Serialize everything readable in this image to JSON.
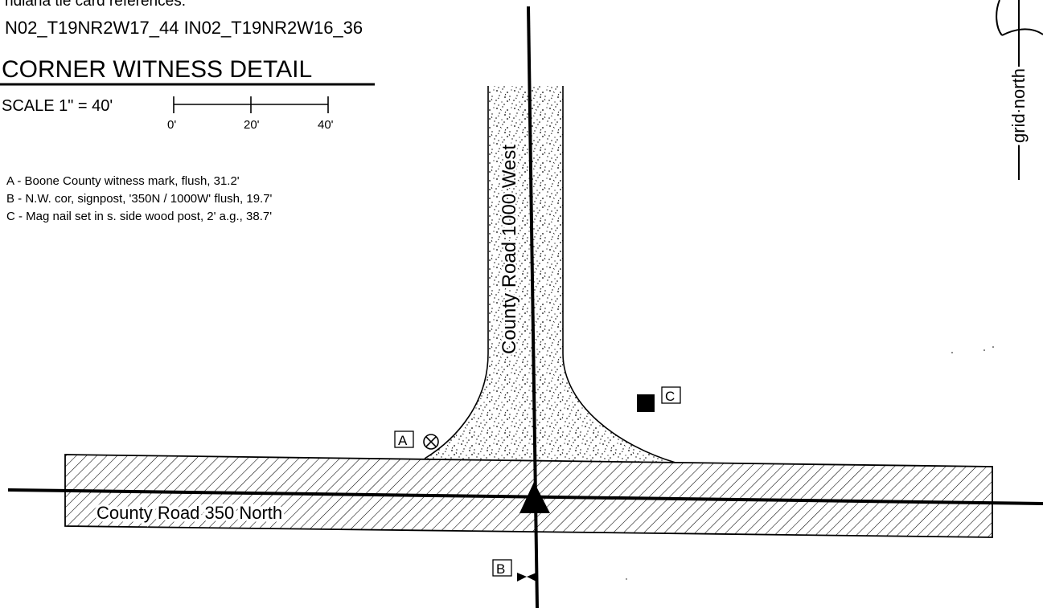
{
  "header": {
    "cut_text": "ndiana tie card references:",
    "references": "N02_T19NR2W17_44  IN02_T19NR2W16_36"
  },
  "detail": {
    "title": "CORNER WITNESS DETAIL",
    "scale_label": "SCALE 1\" = 40'",
    "scale_ticks": [
      "0'",
      "20'",
      "40'"
    ]
  },
  "legend": {
    "items": [
      "A - Boone County witness mark, flush, 31.2'",
      "B - N.W. cor, signpost, '350N / 1000W' flush, 19.7'",
      "C - Mag nail set in s. side wood post, 2' a.g., 38.7'"
    ]
  },
  "roads": {
    "ns_road": "County Road 1000 West",
    "ew_road": "County Road 350 North"
  },
  "markers": {
    "a": "A",
    "b": "B",
    "c": "C"
  },
  "north_arrow": {
    "label": "grid north"
  },
  "colors": {
    "ink": "#000000",
    "paper": "#ffffff"
  }
}
